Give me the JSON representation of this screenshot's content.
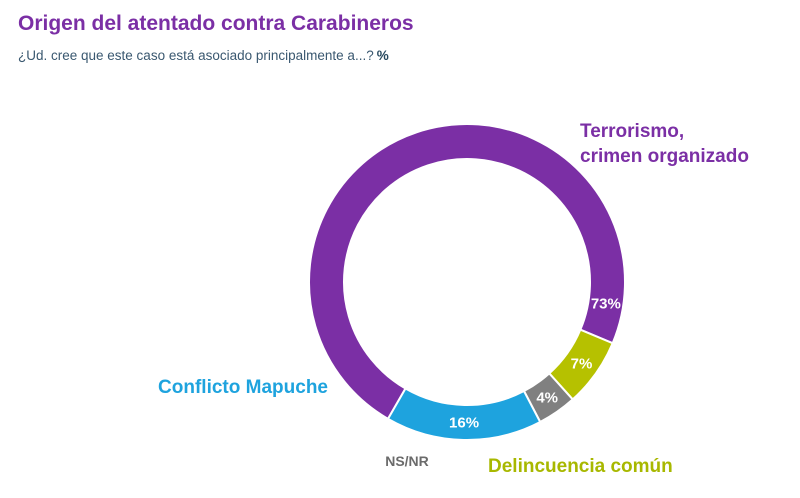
{
  "title": "Origen del atentado contra Carabineros",
  "subtitle": "¿Ud. cree que este caso está asociado principalmente a...?",
  "unit": "%",
  "chart_data": {
    "type": "pie",
    "donut": true,
    "title": "Origen del atentado contra Carabineros",
    "subtitle": "¿Ud. cree que este caso está asociado principalmente a...?",
    "unit": "%",
    "slices": [
      {
        "label_lines": [
          "Terrorismo,",
          "crimen organizado"
        ],
        "value": 73,
        "value_label": "73%",
        "color": "#7b2fa5",
        "label_color": "#7b2fa5"
      },
      {
        "label_lines": [
          "Delincuencia común"
        ],
        "value": 7,
        "value_label": "7%",
        "color": "#b6c100",
        "label_color": "#a8b800"
      },
      {
        "label_lines": [
          "NS/NR"
        ],
        "value": 4,
        "value_label": "4%",
        "color": "#808080",
        "label_color": "#6b6b6b"
      },
      {
        "label_lines": [
          "Conflicto Mapuche"
        ],
        "value": 16,
        "value_label": "16%",
        "color": "#1ea3de",
        "label_color": "#1ea3de"
      }
    ]
  }
}
